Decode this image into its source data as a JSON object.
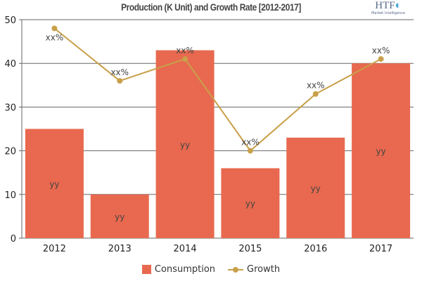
{
  "chart_data": {
    "type": "bar+line",
    "title": "Production (K Unit) and Growth Rate [2012-2017]",
    "categories": [
      "2012",
      "2013",
      "2014",
      "2015",
      "2016",
      "2017"
    ],
    "series": [
      {
        "name": "Consumption",
        "type": "bar",
        "color": "#e8694f",
        "values": [
          25,
          10,
          43,
          16,
          23,
          40
        ],
        "labels": [
          "yy",
          "yy",
          "yy",
          "yy",
          "yy",
          "yy"
        ]
      },
      {
        "name": "Growth",
        "type": "line",
        "color": "#c9a04a",
        "values": [
          48,
          36,
          41,
          20,
          33,
          41
        ],
        "labels": [
          "xx%",
          "xx%",
          "xx%",
          "xx%",
          "xx%",
          "xx%"
        ]
      }
    ],
    "ylim": [
      0,
      50
    ],
    "yticks": [
      0,
      10,
      20,
      30,
      40,
      50
    ],
    "grid": true,
    "legend": "bottom"
  },
  "logo": {
    "main": "HTF",
    "sub": "Market Intelligence"
  }
}
